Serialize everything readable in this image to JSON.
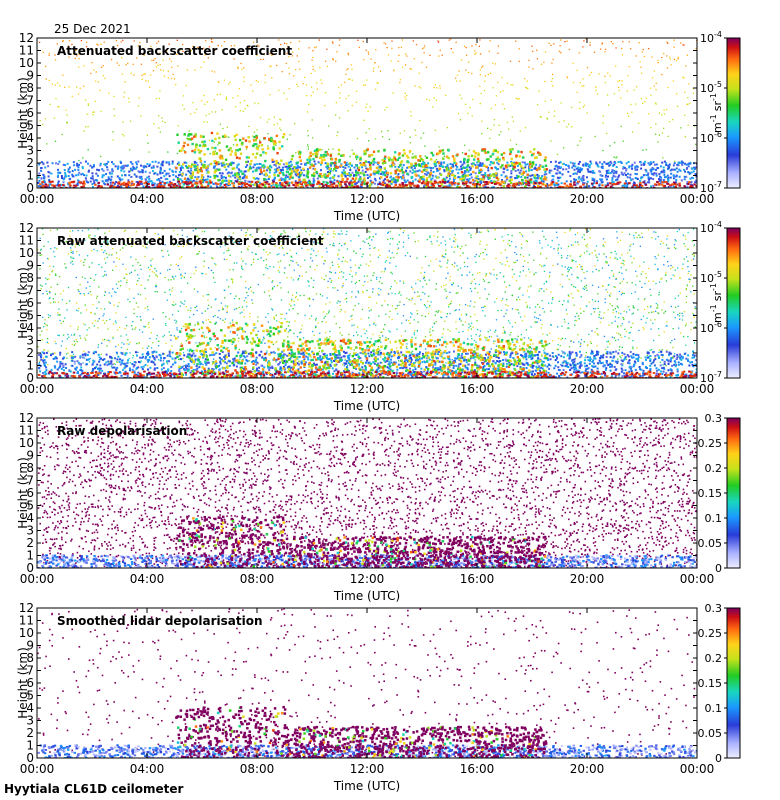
{
  "date_label": "25 Dec 2021",
  "footer_label": "Hyytiala CL61D ceilometer",
  "chart_data": [
    {
      "type": "heatmap",
      "title": "Attenuated backscatter coefficient",
      "xlabel": "Time (UTC)",
      "ylabel": "Height (km)",
      "x_ticks": [
        "00:00",
        "04:00",
        "08:00",
        "12:00",
        "16:00",
        "20:00",
        "00:00"
      ],
      "y_ticks": [
        0,
        1,
        2,
        3,
        4,
        5,
        6,
        7,
        8,
        9,
        10,
        11,
        12
      ],
      "ylim": [
        0,
        12
      ],
      "colorbar": {
        "scale": "log",
        "tick_values": [
          1e-07,
          1e-06,
          1e-05,
          0.0001
        ],
        "ticks": [
          {
            "base": "10",
            "exp": "-7"
          },
          {
            "base": "10",
            "exp": "-6"
          },
          {
            "base": "10",
            "exp": "-5"
          },
          {
            "base": "10",
            "exp": "-4"
          }
        ],
        "unit": {
          "m": "m",
          "m_exp": "-1",
          "sr": "sr",
          "sr_exp": "-1"
        }
      }
    },
    {
      "type": "heatmap",
      "title": "Raw attenuated backscatter coefficient",
      "xlabel": "Time (UTC)",
      "ylabel": "Height (km)",
      "x_ticks": [
        "00:00",
        "04:00",
        "08:00",
        "12:00",
        "16:00",
        "20:00",
        "00:00"
      ],
      "y_ticks": [
        0,
        1,
        2,
        3,
        4,
        5,
        6,
        7,
        8,
        9,
        10,
        11,
        12
      ],
      "ylim": [
        0,
        12
      ],
      "colorbar": {
        "scale": "log",
        "tick_values": [
          1e-07,
          1e-06,
          1e-05,
          0.0001
        ],
        "ticks": [
          {
            "base": "10",
            "exp": "-7"
          },
          {
            "base": "10",
            "exp": "-6"
          },
          {
            "base": "10",
            "exp": "-5"
          },
          {
            "base": "10",
            "exp": "-4"
          }
        ],
        "unit": {
          "m": "m",
          "m_exp": "-1",
          "sr": "sr",
          "sr_exp": "-1"
        }
      }
    },
    {
      "type": "heatmap",
      "title": "Raw depolarisation",
      "xlabel": "Time (UTC)",
      "ylabel": "Height (km)",
      "x_ticks": [
        "00:00",
        "04:00",
        "08:00",
        "12:00",
        "16:00",
        "20:00",
        "00:00"
      ],
      "y_ticks": [
        0,
        1,
        2,
        3,
        4,
        5,
        6,
        7,
        8,
        9,
        10,
        11,
        12
      ],
      "ylim": [
        0,
        12
      ],
      "colorbar": {
        "scale": "linear",
        "tick_values": [
          0,
          0.05,
          0.1,
          0.15,
          0.2,
          0.25,
          0.3
        ],
        "ticks": [
          "0",
          "0.05",
          "0.1",
          "0.15",
          "0.2",
          "0.25",
          "0.3"
        ]
      }
    },
    {
      "type": "heatmap",
      "title": "Smoothed lidar depolarisation",
      "xlabel": "Time (UTC)",
      "ylabel": "Height (km)",
      "x_ticks": [
        "00:00",
        "04:00",
        "08:00",
        "12:00",
        "16:00",
        "20:00",
        "00:00"
      ],
      "y_ticks": [
        0,
        1,
        2,
        3,
        4,
        5,
        6,
        7,
        8,
        9,
        10,
        11,
        12
      ],
      "ylim": [
        0,
        12
      ],
      "colorbar": {
        "scale": "linear",
        "tick_values": [
          0,
          0.05,
          0.1,
          0.15,
          0.2,
          0.25,
          0.3
        ],
        "ticks": [
          "0",
          "0.05",
          "0.1",
          "0.15",
          "0.2",
          "0.25",
          "0.3"
        ]
      }
    }
  ]
}
